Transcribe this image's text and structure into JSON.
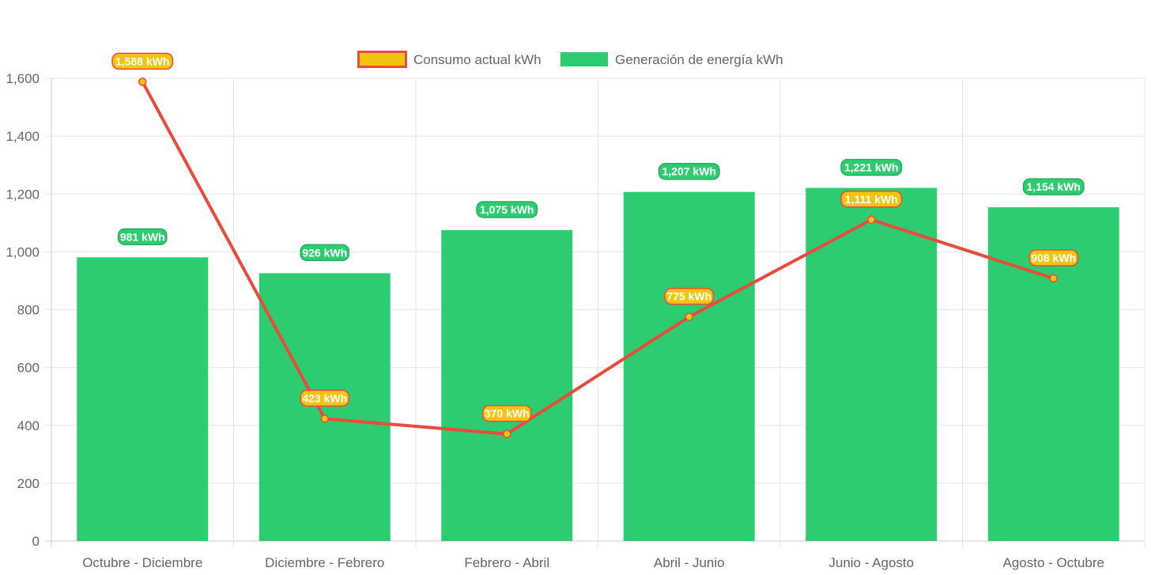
{
  "chart_data": {
    "type": "bar",
    "categories": [
      "Octubre - Diciembre",
      "Diciembre - Febrero",
      "Febrero - Abril",
      "Abril - Junio",
      "Junio - Agosto",
      "Agosto - Octubre"
    ],
    "series": [
      {
        "name": "Consumo actual kWh",
        "kind": "line",
        "values": [
          1588,
          423,
          370,
          775,
          1111,
          908
        ],
        "labels": [
          "1,588 kWh",
          "423 kWh",
          "370 kWh",
          "775 kWh",
          "1,111 kWh",
          "908 kWh"
        ],
        "color": "#e74c3c",
        "fill": "#f1c40f"
      },
      {
        "name": "Generación de energía kWh",
        "kind": "bar",
        "values": [
          981,
          926,
          1075,
          1207,
          1221,
          1154
        ],
        "labels": [
          "981 kWh",
          "926 kWh",
          "1,075 kWh",
          "1,207 kWh",
          "1,221 kWh",
          "1,154 kWh"
        ],
        "color": "#2ecc71",
        "fill": "#2ecc71"
      }
    ],
    "yticks": [
      "0",
      "200",
      "400",
      "600",
      "800",
      "1,000",
      "1,200",
      "1,400",
      "1,600"
    ],
    "ylim": [
      0,
      1600
    ],
    "grid": true,
    "legend_position": "top"
  }
}
